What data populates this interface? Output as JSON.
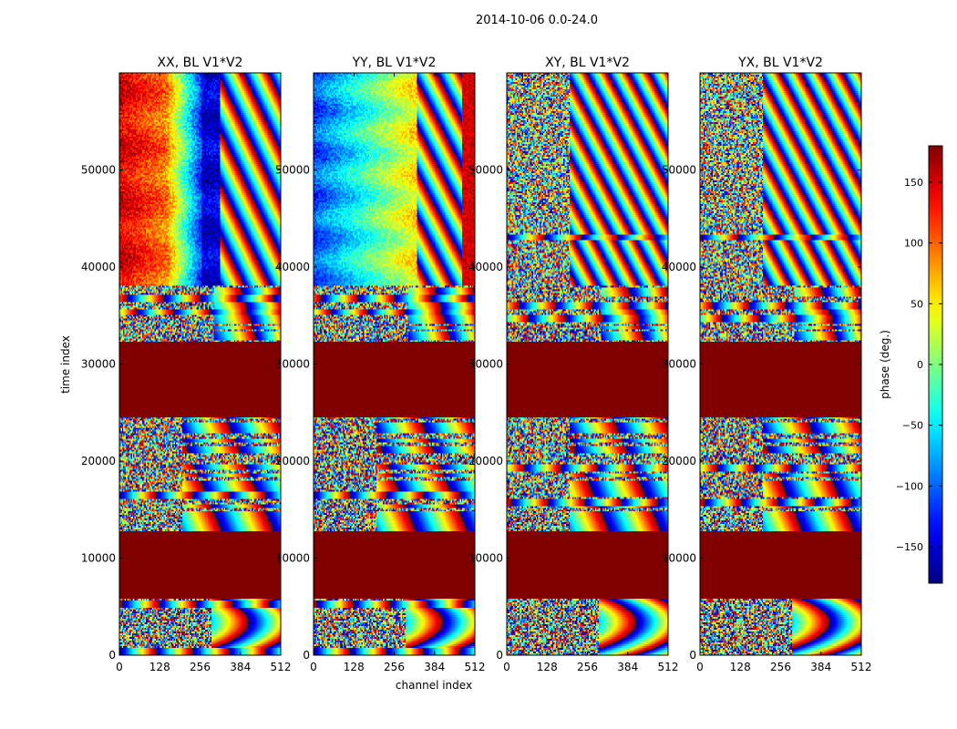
{
  "figure": {
    "suptitle": "2014-10-06 0.0-24.0"
  },
  "chart_data": {
    "type": "heatmap",
    "colormap": "jet",
    "ylabel": "time index",
    "xlabel": "channel index",
    "xlim": [
      0,
      512
    ],
    "ylim": [
      0,
      60000
    ],
    "xticks": [
      0,
      128,
      256,
      384,
      512
    ],
    "yticks": [
      0,
      10000,
      20000,
      30000,
      40000,
      50000
    ],
    "panels": [
      {
        "title": "XX, BL V1*V2",
        "style": "xx"
      },
      {
        "title": "YY, BL V1*V2",
        "style": "yy"
      },
      {
        "title": "XY, BL V1*V2",
        "style": "cross"
      },
      {
        "title": "YX, BL V1*V2",
        "style": "cross"
      }
    ],
    "flagged_time_ranges": [
      [
        5900,
        12700
      ],
      [
        24500,
        32300
      ]
    ],
    "flag_value": 180,
    "colorbar": {
      "label": "phase (deg.)",
      "range": [
        -180,
        180
      ],
      "ticks": [
        -150,
        -100,
        -50,
        0,
        50,
        100,
        150
      ],
      "tick_labels": [
        "−150",
        "−100",
        "−50",
        "0",
        "50",
        "100",
        "150"
      ]
    },
    "colors": {
      "flag": "#800000"
    }
  }
}
